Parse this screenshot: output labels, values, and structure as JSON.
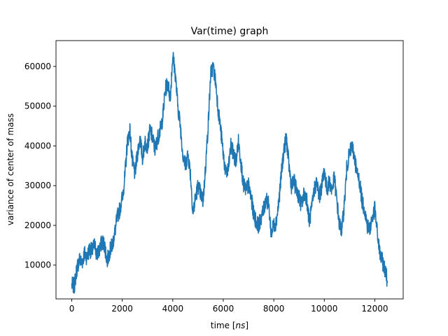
{
  "chart_data": {
    "type": "line",
    "title": "Var(time) graph",
    "xlabel_prefix": "time [",
    "xlabel_unit": "ns",
    "xlabel_suffix": "]",
    "ylabel": "variance of center of mass",
    "xlim": [
      -625,
      13125
    ],
    "ylim": [
      1500,
      66500
    ],
    "xticks": [
      0,
      2000,
      4000,
      6000,
      8000,
      10000,
      12000
    ],
    "yticks": [
      10000,
      20000,
      30000,
      40000,
      50000,
      60000
    ],
    "grid": false,
    "line_color": "#1f77b4",
    "series": [
      {
        "x": [
          0,
          100,
          200,
          300,
          400,
          500,
          600,
          700,
          800,
          900,
          1000,
          1100,
          1200,
          1300,
          1400,
          1500,
          1600,
          1700,
          1800,
          1900,
          2000,
          2100,
          2200,
          2300,
          2400,
          2500,
          2600,
          2700,
          2800,
          2900,
          3000,
          3100,
          3200,
          3300,
          3400,
          3500,
          3600,
          3700,
          3800,
          3900,
          4000,
          4100,
          4200,
          4300,
          4400,
          4500,
          4600,
          4700,
          4800,
          4900,
          5000,
          5100,
          5200,
          5300,
          5400,
          5500,
          5600,
          5700,
          5800,
          5900,
          6000,
          6100,
          6200,
          6300,
          6400,
          6500,
          6600,
          6700,
          6800,
          6900,
          7000,
          7100,
          7200,
          7300,
          7400,
          7500,
          7600,
          7700,
          7800,
          7900,
          8000,
          8100,
          8200,
          8300,
          8400,
          8500,
          8600,
          8700,
          8800,
          8900,
          9000,
          9100,
          9200,
          9300,
          9400,
          9500,
          9600,
          9700,
          9800,
          9900,
          10000,
          10100,
          10200,
          10300,
          10400,
          10500,
          10600,
          10700,
          10800,
          10900,
          11000,
          11100,
          11200,
          11300,
          11400,
          11500,
          11600,
          11700,
          11800,
          11900,
          12000,
          12100,
          12200,
          12300,
          12400,
          12500
        ],
        "values": [
          5000,
          4800,
          9000,
          11500,
          10500,
          13000,
          12000,
          14000,
          13500,
          15000,
          12500,
          14000,
          16000,
          15000,
          11000,
          13500,
          15000,
          18000,
          22000,
          24000,
          27000,
          32000,
          41000,
          44000,
          36000,
          33000,
          38000,
          42000,
          37000,
          41000,
          40000,
          44000,
          42000,
          39000,
          42000,
          44000,
          47000,
          54000,
          56000,
          52000,
          63000,
          58000,
          50000,
          45000,
          38000,
          35000,
          38000,
          33000,
          23000,
          27000,
          30000,
          28000,
          26000,
          35000,
          45000,
          58000,
          60000,
          56000,
          49000,
          44000,
          38000,
          33000,
          34000,
          40000,
          38000,
          36000,
          41000,
          36000,
          30000,
          29000,
          30000,
          27000,
          23000,
          21000,
          20000,
          22000,
          24000,
          27000,
          25000,
          18000,
          20000,
          21000,
          26000,
          33000,
          39000,
          42000,
          35000,
          30000,
          31000,
          29000,
          27000,
          25000,
          28000,
          27000,
          21000,
          24000,
          29000,
          31000,
          27000,
          30000,
          34000,
          29000,
          31000,
          29000,
          32000,
          26000,
          20000,
          19000,
          26000,
          35000,
          38000,
          40000,
          37000,
          33000,
          31000,
          26000,
          24000,
          20000,
          19000,
          22000,
          24000,
          18000,
          13000,
          11000,
          9000,
          6000
        ]
      }
    ]
  }
}
